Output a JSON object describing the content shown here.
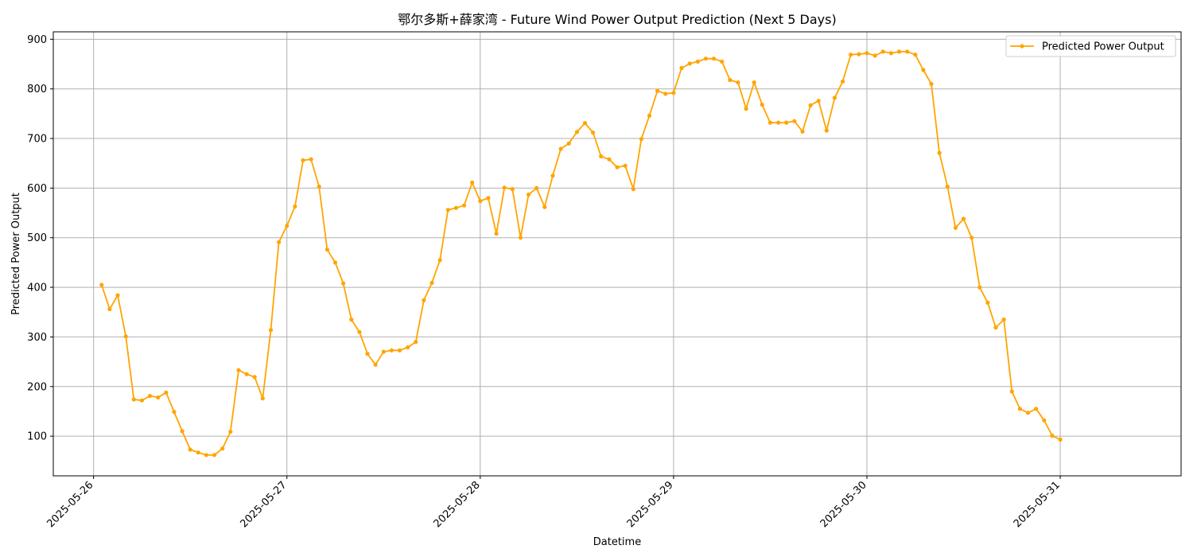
{
  "chart_data": {
    "type": "line",
    "title": "鄂尔多斯+薛家湾 - Future Wind Power Output Prediction (Next 5 Days)",
    "xlabel": "Datetime",
    "ylabel": "Predicted Power Output",
    "x_tick_labels": [
      "2025-05-26",
      "2025-05-27",
      "2025-05-28",
      "2025-05-29",
      "2025-05-30",
      "2025-05-31"
    ],
    "y_ticks": [
      100,
      200,
      300,
      400,
      500,
      600,
      700,
      800,
      900
    ],
    "ylim": [
      20,
      915
    ],
    "xlim": [
      "2025-05-25 19:00",
      "2025-05-31 15:00"
    ],
    "grid": true,
    "legend_position": "top-right",
    "color": "#FFA500",
    "series": [
      {
        "name": "Predicted Power Output",
        "x_start": "2025-05-26 01:00",
        "x_step_hours": 1,
        "values": [
          405,
          356,
          384,
          301,
          174,
          172,
          181,
          178,
          188,
          149,
          110,
          73,
          67,
          62,
          62,
          75,
          109,
          233,
          225,
          219,
          176,
          314,
          491,
          524,
          563,
          656,
          658,
          603,
          476,
          450,
          408,
          335,
          310,
          266,
          244,
          270,
          273,
          273,
          279,
          290,
          374,
          409,
          455,
          556,
          560,
          565,
          611,
          574,
          580,
          508,
          601,
          598,
          500,
          587,
          600,
          562,
          625,
          679,
          690,
          713,
          731,
          712,
          664,
          658,
          642,
          645,
          598,
          699,
          746,
          796,
          790,
          792,
          842,
          851,
          855,
          861,
          861,
          855,
          818,
          813,
          760,
          813,
          768,
          732,
          732,
          732,
          735,
          714,
          767,
          776,
          716,
          782,
          815,
          869,
          870,
          872,
          867,
          875,
          872,
          875,
          875,
          869,
          838,
          810,
          671,
          603,
          520,
          538,
          500,
          400,
          369,
          319,
          335,
          190,
          155,
          147,
          155,
          132,
          101,
          93
        ]
      }
    ]
  }
}
